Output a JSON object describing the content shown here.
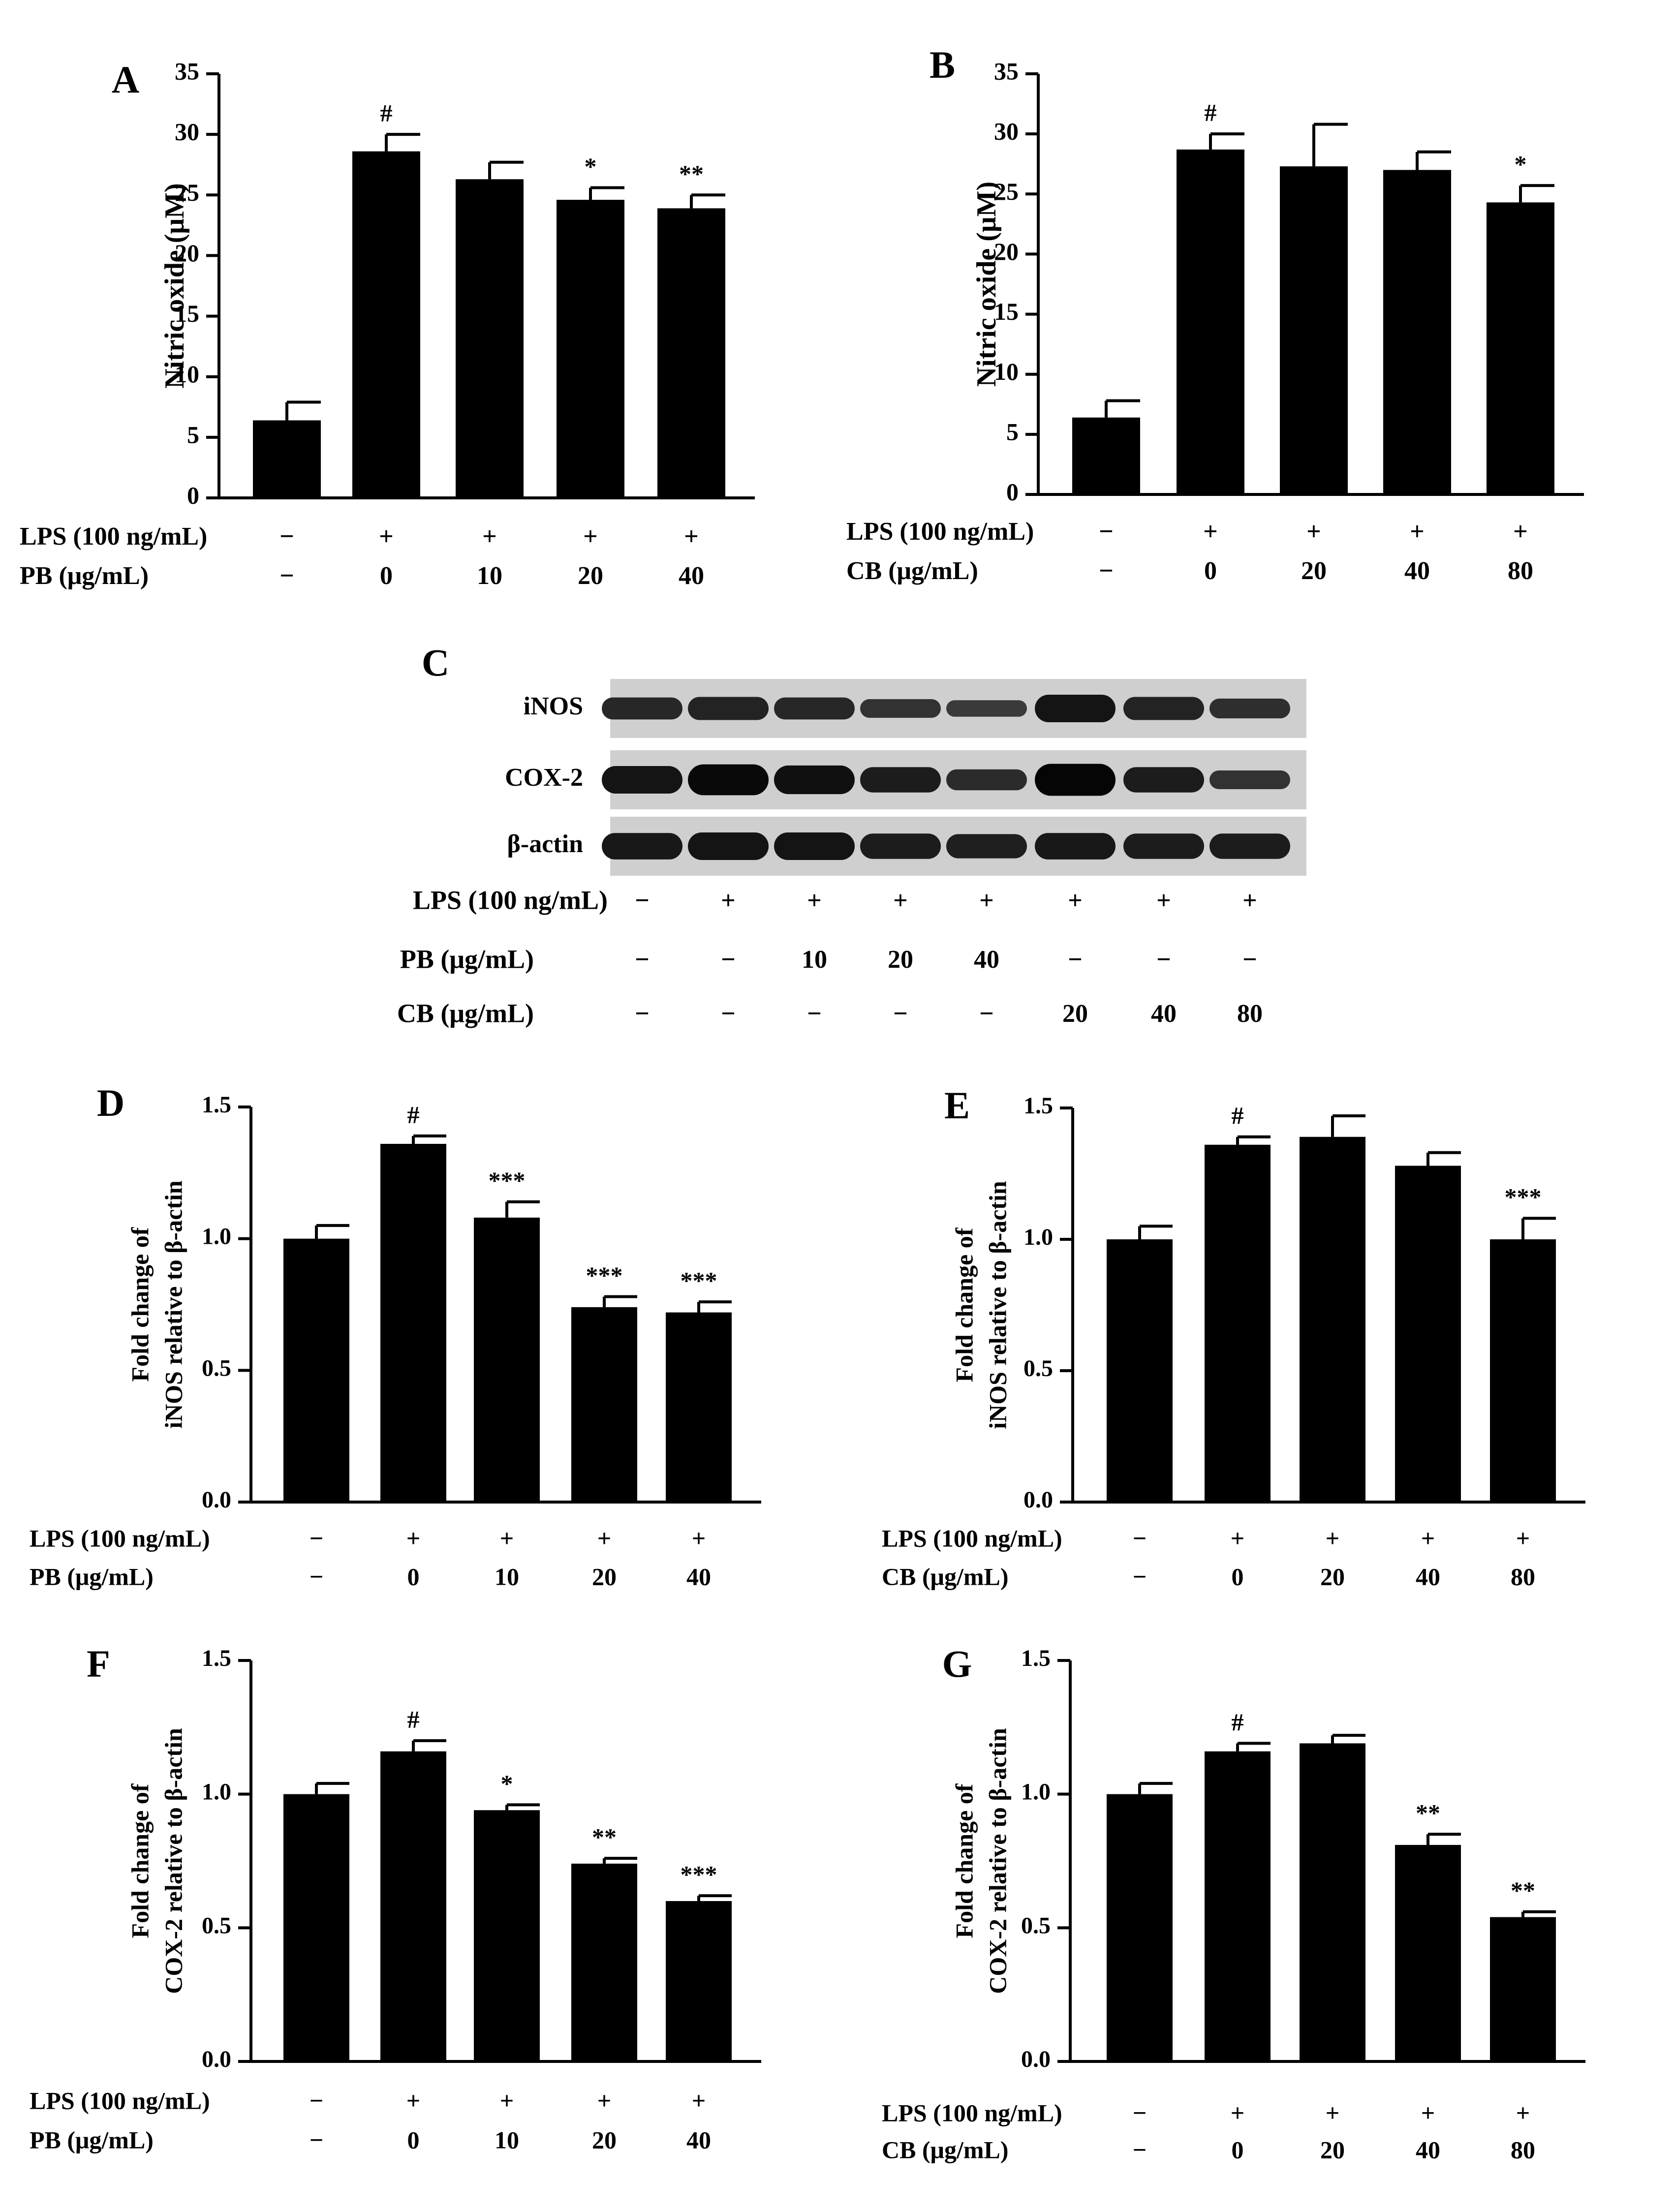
{
  "colors": {
    "bar": "#000000",
    "axis": "#000000",
    "background": "#ffffff"
  },
  "treatment_labels": {
    "lps": "LPS (100 ng/mL)",
    "pb": "PB (μg/mL)",
    "cb": "CB (μg/mL)"
  },
  "chart_data": [
    {
      "panel": "A",
      "type": "bar",
      "ylabel": "Nitric oxide (μM)",
      "ylim": [
        0,
        35
      ],
      "yticks": [
        "0",
        "5",
        "10",
        "15",
        "20",
        "25",
        "30",
        "35"
      ],
      "categories": [
        "−",
        "+ / 0",
        "+ / 10",
        "+ / 20",
        "+ / 40"
      ],
      "lps": [
        "−",
        "+",
        "+",
        "+",
        "+"
      ],
      "dose": [
        "−",
        "0",
        "10",
        "20",
        "40"
      ],
      "dose_label": "PB (μg/mL)",
      "values": [
        6.4,
        28.6,
        26.3,
        24.6,
        23.9
      ],
      "errors": [
        1.5,
        1.4,
        1.4,
        1.0,
        1.1
      ],
      "annotations": [
        "",
        "#",
        "",
        "*",
        "**"
      ]
    },
    {
      "panel": "B",
      "type": "bar",
      "ylabel": "Nitric oxide (μM)",
      "ylim": [
        0,
        35
      ],
      "yticks": [
        "0",
        "5",
        "10",
        "15",
        "20",
        "25",
        "30",
        "35"
      ],
      "categories": [
        "−",
        "+ / 0",
        "+ / 20",
        "+ / 40",
        "+ / 80"
      ],
      "lps": [
        "−",
        "+",
        "+",
        "+",
        "+"
      ],
      "dose": [
        "−",
        "0",
        "20",
        "40",
        "80"
      ],
      "dose_label": "CB (μg/mL)",
      "values": [
        6.4,
        28.7,
        27.3,
        27.0,
        24.3
      ],
      "errors": [
        1.4,
        1.3,
        3.5,
        1.5,
        1.4
      ],
      "annotations": [
        "",
        "#",
        "",
        "",
        "*"
      ]
    },
    {
      "panel": "D",
      "type": "bar",
      "ylabel_lines": [
        "Fold change of",
        "iNOS relative to β-actin"
      ],
      "ylim": [
        0,
        1.5
      ],
      "yticks": [
        "0.0",
        "0.5",
        "1.0",
        "1.5"
      ],
      "categories": [
        "−",
        "+ / 0",
        "+ / 10",
        "+ / 20",
        "+ / 40"
      ],
      "lps": [
        "−",
        "+",
        "+",
        "+",
        "+"
      ],
      "dose": [
        "−",
        "0",
        "10",
        "20",
        "40"
      ],
      "dose_label": "PB (μg/mL)",
      "values": [
        1.0,
        1.36,
        1.08,
        0.74,
        0.72
      ],
      "errors": [
        0.05,
        0.03,
        0.06,
        0.04,
        0.04
      ],
      "annotations": [
        "",
        "#",
        "***",
        "***",
        "***"
      ]
    },
    {
      "panel": "E",
      "type": "bar",
      "ylabel_lines": [
        "Fold change of",
        "iNOS relative to β-actin"
      ],
      "ylim": [
        0,
        1.5
      ],
      "yticks": [
        "0.0",
        "0.5",
        "1.0",
        "1.5"
      ],
      "categories": [
        "−",
        "+ / 0",
        "+ / 20",
        "+ / 40",
        "+ / 80"
      ],
      "lps": [
        "−",
        "+",
        "+",
        "+",
        "+"
      ],
      "dose": [
        "−",
        "0",
        "20",
        "40",
        "80"
      ],
      "dose_label": "CB (μg/mL)",
      "values": [
        1.0,
        1.36,
        1.39,
        1.28,
        1.0
      ],
      "errors": [
        0.05,
        0.03,
        0.08,
        0.05,
        0.08
      ],
      "annotations": [
        "",
        "#",
        "",
        "",
        "***"
      ]
    },
    {
      "panel": "F",
      "type": "bar",
      "ylabel_lines": [
        "Fold change of",
        "COX-2 relative to β-actin"
      ],
      "ylim": [
        0,
        1.5
      ],
      "yticks": [
        "0.0",
        "0.5",
        "1.0",
        "1.5"
      ],
      "categories": [
        "−",
        "+ / 0",
        "+ / 10",
        "+ / 20",
        "+ / 40"
      ],
      "lps": [
        "−",
        "+",
        "+",
        "+",
        "+"
      ],
      "dose": [
        "−",
        "0",
        "10",
        "20",
        "40"
      ],
      "dose_label": "PB (μg/mL)",
      "values": [
        1.0,
        1.16,
        0.94,
        0.74,
        0.6
      ],
      "errors": [
        0.04,
        0.04,
        0.02,
        0.02,
        0.02
      ],
      "annotations": [
        "",
        "#",
        "*",
        "**",
        "***"
      ]
    },
    {
      "panel": "G",
      "type": "bar",
      "ylabel_lines": [
        "Fold change of",
        "COX-2 relative to β-actin"
      ],
      "ylim": [
        0,
        1.5
      ],
      "yticks": [
        "0.0",
        "0.5",
        "1.0",
        "1.5"
      ],
      "categories": [
        "−",
        "+ / 0",
        "+ / 20",
        "+ / 40",
        "+ / 80"
      ],
      "lps": [
        "−",
        "+",
        "+",
        "+",
        "+"
      ],
      "dose": [
        "−",
        "0",
        "20",
        "40",
        "80"
      ],
      "dose_label": "CB (μg/mL)",
      "values": [
        1.0,
        1.16,
        1.19,
        0.81,
        0.54
      ],
      "errors": [
        0.04,
        0.03,
        0.03,
        0.04,
        0.02
      ],
      "annotations": [
        "",
        "#",
        "",
        "**",
        "**"
      ]
    }
  ],
  "blot": {
    "panel": "C",
    "rows": [
      "iNOS",
      "COX-2",
      "β-actin"
    ],
    "lps": [
      "−",
      "+",
      "+",
      "+",
      "+",
      "+",
      "+",
      "+"
    ],
    "pb": [
      "−",
      "−",
      "10",
      "20",
      "40",
      "−",
      "−",
      "−"
    ],
    "cb": [
      "−",
      "−",
      "−",
      "−",
      "−",
      "20",
      "40",
      "80"
    ],
    "band_intensity": [
      [
        0.55,
        0.6,
        0.55,
        0.4,
        0.3,
        0.8,
        0.6,
        0.45
      ],
      [
        0.8,
        0.95,
        0.85,
        0.7,
        0.5,
        1.0,
        0.7,
        0.4
      ],
      [
        0.75,
        0.8,
        0.8,
        0.7,
        0.65,
        0.75,
        0.7,
        0.7
      ]
    ]
  }
}
